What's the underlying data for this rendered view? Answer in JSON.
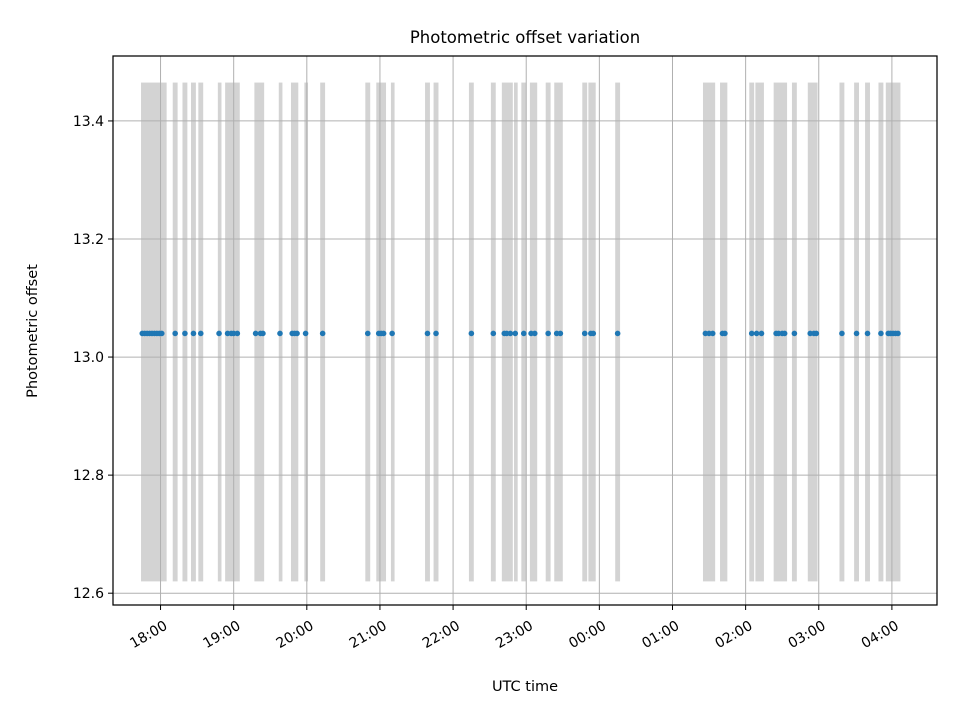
{
  "chart_data": {
    "type": "scatter",
    "title": "Photometric offset variation",
    "xlabel": "UTC time",
    "ylabel": "Photometric offset",
    "xlim": [
      "17:21",
      "04:37"
    ],
    "ylim": [
      12.58,
      13.51
    ],
    "x_ticks": [
      "18:00",
      "19:00",
      "20:00",
      "21:00",
      "22:00",
      "23:00",
      "00:00",
      "01:00",
      "02:00",
      "03:00",
      "04:00"
    ],
    "y_ticks": [
      "12.6",
      "12.8",
      "13.0",
      "13.2",
      "13.4"
    ],
    "grid": true,
    "series": [
      {
        "y": 13.04,
        "x": [
          "17:45",
          "17:47",
          "17:49",
          "17:51",
          "17:53",
          "17:55",
          "17:57",
          "17:59",
          "18:01",
          "18:12",
          "18:20",
          "18:27",
          "18:33",
          "18:48",
          "18:55",
          "18:58",
          "19:00",
          "19:03",
          "19:18",
          "19:22",
          "19:24",
          "19:38",
          "19:48",
          "19:50",
          "19:52",
          "19:59",
          "20:13",
          "20:50",
          "20:59",
          "21:01",
          "21:03",
          "21:10",
          "21:39",
          "21:46",
          "22:15",
          "22:33",
          "22:42",
          "22:44",
          "22:47",
          "22:51",
          "22:58",
          "23:04",
          "23:07",
          "23:18",
          "23:25",
          "23:28",
          "23:48",
          "23:53",
          "23:55",
          "00:15",
          "01:27",
          "01:30",
          "01:33",
          "01:41",
          "01:43",
          "02:05",
          "02:09",
          "02:13",
          "02:25",
          "02:27",
          "02:30",
          "02:32",
          "02:40",
          "02:53",
          "02:56",
          "02:58",
          "03:19",
          "03:31",
          "03:40",
          "03:51",
          "03:57",
          "03:59",
          "04:01",
          "04:03",
          "04:05"
        ]
      }
    ],
    "exposure_bands": [
      [
        "17:44",
        "18:05"
      ],
      [
        "18:10",
        "18:14"
      ],
      [
        "18:18",
        "18:22"
      ],
      [
        "18:25",
        "18:29"
      ],
      [
        "18:31",
        "18:35"
      ],
      [
        "18:47",
        "18:50"
      ],
      [
        "18:53",
        "19:05"
      ],
      [
        "19:17",
        "19:25"
      ],
      [
        "19:37",
        "19:40"
      ],
      [
        "19:47",
        "19:53"
      ],
      [
        "19:58",
        "20:01"
      ],
      [
        "20:11",
        "20:15"
      ],
      [
        "20:48",
        "20:52"
      ],
      [
        "20:57",
        "21:05"
      ],
      [
        "21:09",
        "21:12"
      ],
      [
        "21:37",
        "21:41"
      ],
      [
        "21:44",
        "21:48"
      ],
      [
        "22:13",
        "22:17"
      ],
      [
        "22:31",
        "22:35"
      ],
      [
        "22:40",
        "22:49"
      ],
      [
        "22:50",
        "22:53"
      ],
      [
        "22:56",
        "23:00"
      ],
      [
        "23:03",
        "23:09"
      ],
      [
        "23:16",
        "23:20"
      ],
      [
        "23:23",
        "23:30"
      ],
      [
        "23:46",
        "23:50"
      ],
      [
        "23:51",
        "23:57"
      ],
      [
        "00:13",
        "00:17"
      ],
      [
        "01:25",
        "01:35"
      ],
      [
        "01:39",
        "01:45"
      ],
      [
        "02:03",
        "02:07"
      ],
      [
        "02:08",
        "02:15"
      ],
      [
        "02:23",
        "02:34"
      ],
      [
        "02:38",
        "02:42"
      ],
      [
        "02:51",
        "02:59"
      ],
      [
        "03:17",
        "03:21"
      ],
      [
        "03:29",
        "03:33"
      ],
      [
        "03:38",
        "03:42"
      ],
      [
        "03:49",
        "03:53"
      ],
      [
        "03:55",
        "04:07"
      ]
    ],
    "colors": {
      "points": "#1f77b4",
      "bands": "#d3d3d3",
      "grid": "#b0b0b0"
    }
  }
}
